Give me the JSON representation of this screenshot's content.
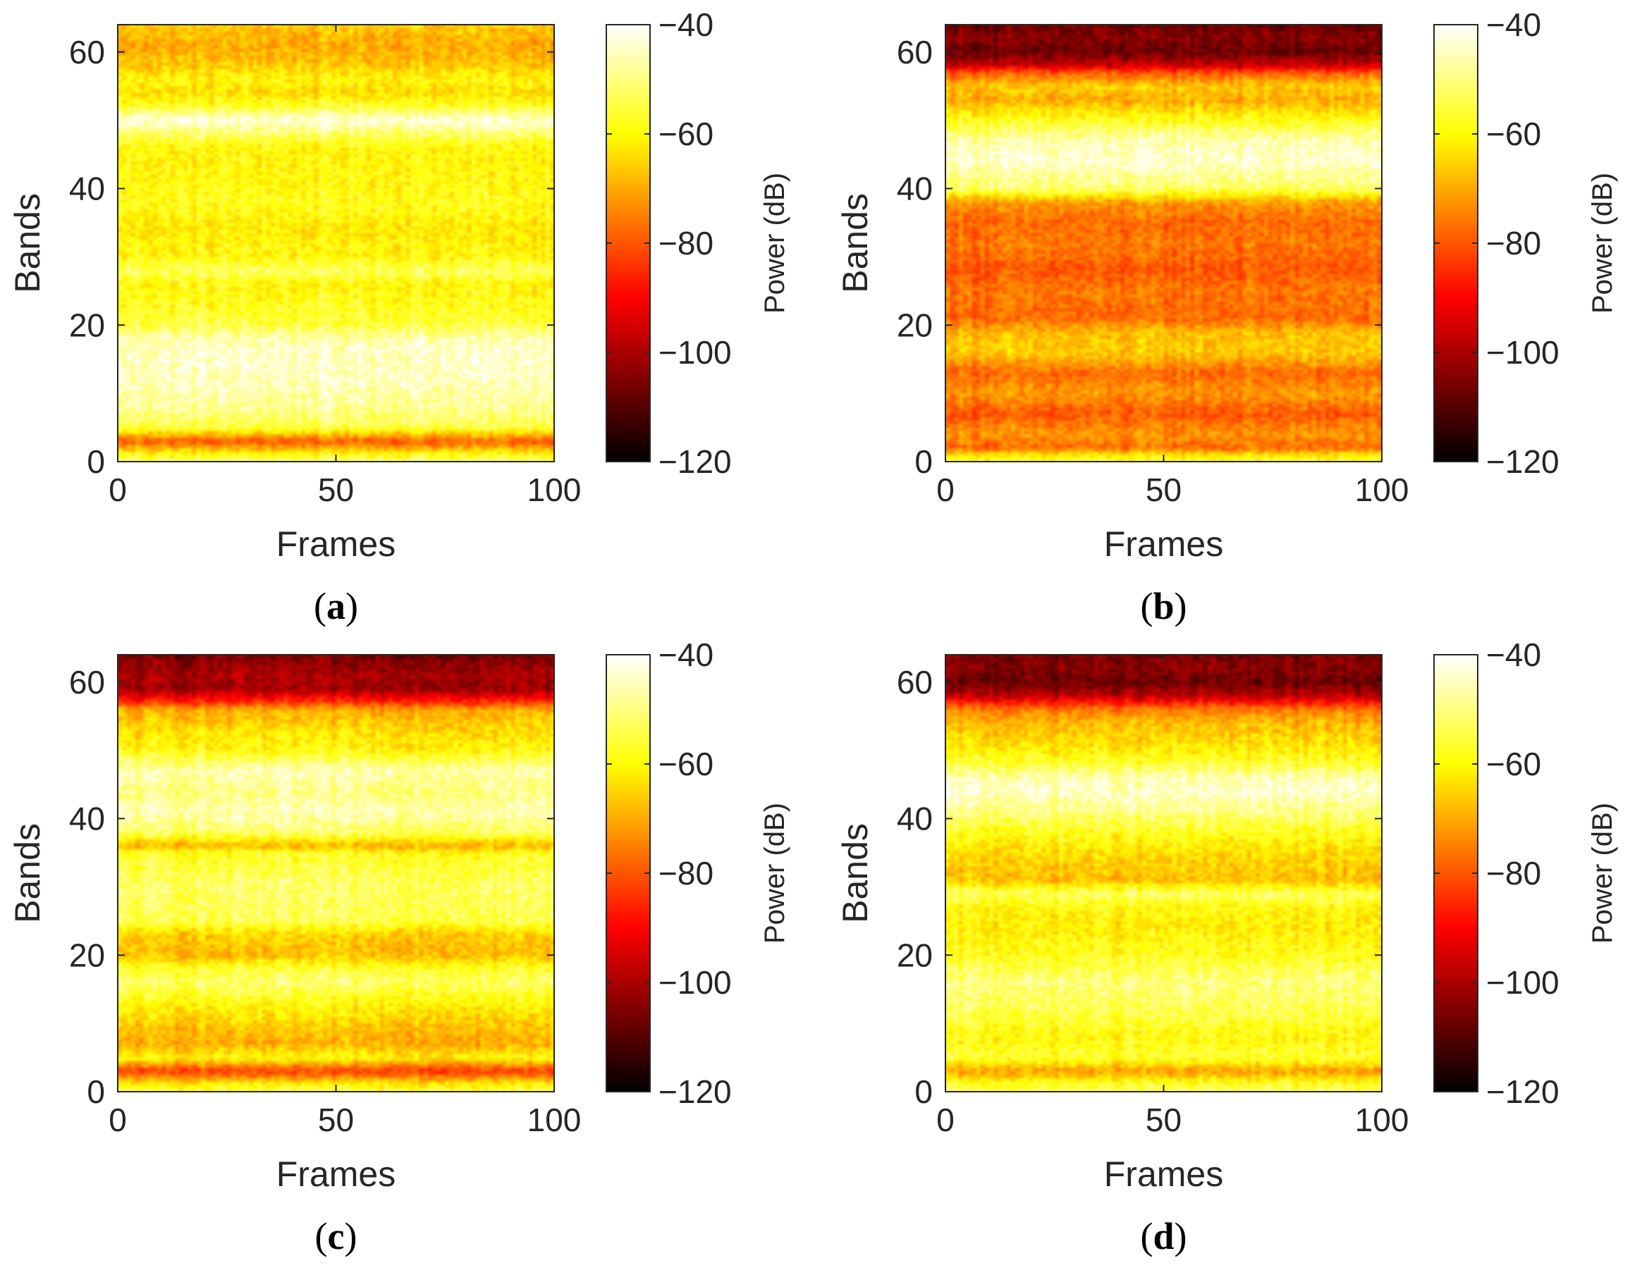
{
  "chart_data": [
    {
      "type": "heatmap",
      "caption": "a",
      "xlabel": "Frames",
      "ylabel": "Bands",
      "colorbar_label": "Power (dB)",
      "xlim": [
        0,
        100
      ],
      "ylim": [
        0,
        64
      ],
      "xticks": [
        "0",
        "50",
        "100"
      ],
      "xtick_values": [
        0,
        50,
        100
      ],
      "yticks": [
        "0",
        "20",
        "40",
        "60"
      ],
      "ytick_values": [
        0,
        20,
        40,
        60
      ],
      "clim": [
        -120,
        -40
      ],
      "cbticks": [
        "−40",
        "−60",
        "−80",
        "−100",
        "−120"
      ],
      "cbtick_values": [
        -40,
        -60,
        -80,
        -100,
        -120
      ],
      "band_profile_db": [
        [
          0,
          -52
        ],
        [
          1,
          -58
        ],
        [
          3,
          -80
        ],
        [
          5,
          -54
        ],
        [
          8,
          -48
        ],
        [
          12,
          -45
        ],
        [
          16,
          -44
        ],
        [
          18,
          -46
        ],
        [
          20,
          -55
        ],
        [
          23,
          -58
        ],
        [
          26,
          -60
        ],
        [
          28,
          -52
        ],
        [
          30,
          -60
        ],
        [
          34,
          -62
        ],
        [
          38,
          -58
        ],
        [
          42,
          -60
        ],
        [
          46,
          -60
        ],
        [
          48,
          -52
        ],
        [
          50,
          -42
        ],
        [
          52,
          -56
        ],
        [
          54,
          -64
        ],
        [
          56,
          -60
        ],
        [
          58,
          -66
        ],
        [
          61,
          -70
        ],
        [
          64,
          -66
        ]
      ]
    },
    {
      "type": "heatmap",
      "caption": "b",
      "xlabel": "Frames",
      "ylabel": "Bands",
      "colorbar_label": "Power (dB)",
      "xlim": [
        0,
        100
      ],
      "ylim": [
        0,
        64
      ],
      "xticks": [
        "0",
        "50",
        "100"
      ],
      "xtick_values": [
        0,
        50,
        100
      ],
      "yticks": [
        "0",
        "20",
        "40",
        "60"
      ],
      "ytick_values": [
        0,
        20,
        40,
        60
      ],
      "clim": [
        -120,
        -40
      ],
      "cbticks": [
        "−40",
        "−60",
        "−80",
        "−100",
        "−120"
      ],
      "cbtick_values": [
        -40,
        -60,
        -80,
        -100,
        -120
      ],
      "band_profile_db": [
        [
          0,
          -58
        ],
        [
          1,
          -62
        ],
        [
          2,
          -78
        ],
        [
          4,
          -72
        ],
        [
          7,
          -80
        ],
        [
          10,
          -72
        ],
        [
          13,
          -78
        ],
        [
          16,
          -66
        ],
        [
          19,
          -68
        ],
        [
          21,
          -78
        ],
        [
          25,
          -76
        ],
        [
          28,
          -80
        ],
        [
          32,
          -76
        ],
        [
          35,
          -78
        ],
        [
          38,
          -72
        ],
        [
          40,
          -52
        ],
        [
          44,
          -44
        ],
        [
          47,
          -46
        ],
        [
          50,
          -58
        ],
        [
          53,
          -70
        ],
        [
          55,
          -66
        ],
        [
          57,
          -80
        ],
        [
          58,
          -96
        ],
        [
          60,
          -108
        ],
        [
          62,
          -104
        ],
        [
          64,
          -108
        ]
      ]
    },
    {
      "type": "heatmap",
      "caption": "c",
      "xlabel": "Frames",
      "ylabel": "Bands",
      "colorbar_label": "Power (dB)",
      "xlim": [
        0,
        100
      ],
      "ylim": [
        0,
        64
      ],
      "xticks": [
        "0",
        "50",
        "100"
      ],
      "xtick_values": [
        0,
        50,
        100
      ],
      "yticks": [
        "0",
        "20",
        "40",
        "60"
      ],
      "ytick_values": [
        0,
        20,
        40,
        60
      ],
      "clim": [
        -120,
        -40
      ],
      "cbticks": [
        "−40",
        "−60",
        "−80",
        "−100",
        "−120"
      ],
      "cbtick_values": [
        -40,
        -60,
        -80,
        -100,
        -120
      ],
      "band_profile_db": [
        [
          0,
          -56
        ],
        [
          1,
          -60
        ],
        [
          3,
          -84
        ],
        [
          5,
          -60
        ],
        [
          7,
          -70
        ],
        [
          10,
          -66
        ],
        [
          13,
          -60
        ],
        [
          16,
          -52
        ],
        [
          18,
          -56
        ],
        [
          20,
          -68
        ],
        [
          23,
          -66
        ],
        [
          25,
          -54
        ],
        [
          30,
          -52
        ],
        [
          35,
          -58
        ],
        [
          36,
          -70
        ],
        [
          38,
          -52
        ],
        [
          41,
          -46
        ],
        [
          44,
          -50
        ],
        [
          47,
          -46
        ],
        [
          50,
          -60
        ],
        [
          53,
          -64
        ],
        [
          56,
          -70
        ],
        [
          57,
          -84
        ],
        [
          59,
          -102
        ],
        [
          61,
          -100
        ],
        [
          64,
          -106
        ]
      ]
    },
    {
      "type": "heatmap",
      "caption": "d",
      "xlabel": "Frames",
      "ylabel": "Bands",
      "colorbar_label": "Power (dB)",
      "xlim": [
        0,
        100
      ],
      "ylim": [
        0,
        64
      ],
      "xticks": [
        "0",
        "50",
        "100"
      ],
      "xtick_values": [
        0,
        50,
        100
      ],
      "yticks": [
        "0",
        "20",
        "40",
        "60"
      ],
      "ytick_values": [
        0,
        20,
        40,
        60
      ],
      "clim": [
        -120,
        -40
      ],
      "cbticks": [
        "−40",
        "−60",
        "−80",
        "−100",
        "−120"
      ],
      "cbtick_values": [
        -40,
        -60,
        -80,
        -100,
        -120
      ],
      "band_profile_db": [
        [
          0,
          -54
        ],
        [
          1,
          -56
        ],
        [
          3,
          -72
        ],
        [
          5,
          -56
        ],
        [
          8,
          -60
        ],
        [
          12,
          -54
        ],
        [
          16,
          -50
        ],
        [
          20,
          -58
        ],
        [
          24,
          -62
        ],
        [
          27,
          -60
        ],
        [
          29,
          -52
        ],
        [
          31,
          -68
        ],
        [
          35,
          -64
        ],
        [
          38,
          -58
        ],
        [
          41,
          -50
        ],
        [
          44,
          -44
        ],
        [
          46,
          -46
        ],
        [
          48,
          -56
        ],
        [
          51,
          -64
        ],
        [
          54,
          -68
        ],
        [
          56,
          -76
        ],
        [
          58,
          -98
        ],
        [
          60,
          -108
        ],
        [
          62,
          -104
        ],
        [
          64,
          -106
        ]
      ]
    }
  ]
}
